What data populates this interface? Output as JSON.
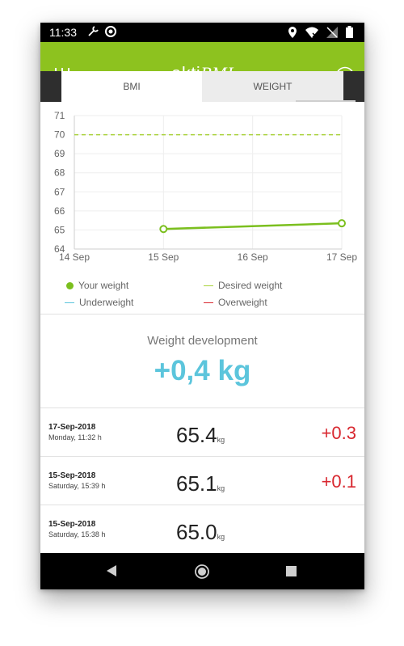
{
  "status_bar": {
    "time": "11:33",
    "icons_left": [
      "tools-icon",
      "record-icon"
    ],
    "icons_right": [
      "location-icon",
      "wifi-off-icon",
      "no-signal-icon",
      "battery-icon"
    ]
  },
  "app_bar": {
    "title_part1": "akti",
    "title_part2": "BMI",
    "color": "#8dc21f"
  },
  "tabs": [
    {
      "label": "BMI",
      "active": false
    },
    {
      "label": "WEIGHT",
      "active": true
    }
  ],
  "chart_data": {
    "type": "line",
    "x": [
      "14 Sep",
      "15 Sep",
      "16 Sep",
      "17 Sep"
    ],
    "ylim": [
      64,
      71
    ],
    "yticks": [
      "71",
      "70",
      "69",
      "68",
      "67",
      "66",
      "65",
      "64"
    ],
    "desired_weight": 70,
    "series": [
      {
        "name": "Your weight",
        "color": "#7bbf1e",
        "points": [
          {
            "x": "15 Sep",
            "y": 65.05
          },
          {
            "x": "17 Sep",
            "y": 65.35
          }
        ]
      }
    ],
    "legend": [
      {
        "label": "Your weight",
        "color": "#7bbf1e",
        "style": "dot"
      },
      {
        "label": "Desired weight",
        "color": "#a9d23a",
        "style": "line"
      },
      {
        "label": "Underweight",
        "color": "#5cc5dc",
        "style": "line"
      },
      {
        "label": "Overweight",
        "color": "#d8272f",
        "style": "line"
      }
    ],
    "grid": true
  },
  "development": {
    "title": "Weight development",
    "value": "+0,4 kg",
    "color": "#5cc5dc"
  },
  "entries": [
    {
      "date": "17-Sep-2018",
      "time": "Monday, 11:32 h",
      "weight": "65.4",
      "unit": "kg",
      "diff": "+0.3"
    },
    {
      "date": "15-Sep-2018",
      "time": "Saturday, 15:39 h",
      "weight": "65.1",
      "unit": "kg",
      "diff": "+0.1"
    },
    {
      "date": "15-Sep-2018",
      "time": "Saturday, 15:38 h",
      "weight": "65.0",
      "unit": "kg",
      "diff": ""
    }
  ],
  "nav_bar": {
    "buttons": [
      "back-icon",
      "home-icon",
      "recent-apps-icon"
    ]
  }
}
